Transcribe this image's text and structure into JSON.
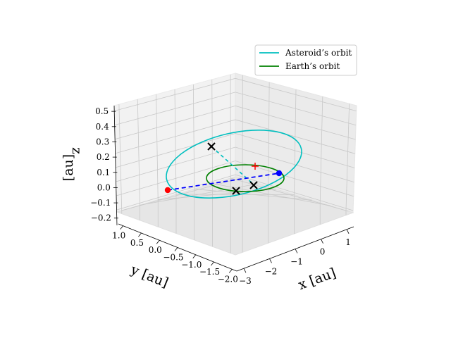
{
  "chart_data": {
    "type": "line",
    "projection": "3d",
    "xlabel": "x [au]",
    "ylabel": "y [au]",
    "zlabel": "z",
    "zlabel_unit": "[au]",
    "x_ticks": [
      "−3",
      "−2",
      "−1",
      "0",
      "1"
    ],
    "y_ticks": [
      "1.0",
      "0.5",
      "0.0",
      "−0.5",
      "−1.0",
      "−1.5",
      "−2.0"
    ],
    "z_ticks": [
      "0.5",
      "0.4",
      "0.3",
      "0.2",
      "0.1",
      "0.0",
      "−0.1",
      "−0.2"
    ],
    "grid": true,
    "legend_position": "top-right",
    "series": [
      {
        "name": "Asteroid’s orbit",
        "color": "#00bfbf",
        "shape": "ellipse",
        "semi_major_axis": 1.7,
        "eccentricity": 0.3,
        "inclination_deg": 10
      },
      {
        "name": "Earth’s orbit",
        "color": "#008000",
        "shape": "circle",
        "radius": 1.0
      }
    ],
    "markers": [
      {
        "label": "asteroid-position",
        "color": "#ff0000",
        "symbol": "dot"
      },
      {
        "label": "earth-position",
        "color": "#0000ff",
        "symbol": "dot"
      },
      {
        "label": "sun",
        "color": "#ff0000",
        "symbol": "plus"
      },
      {
        "label": "node-1",
        "color": "#000000",
        "symbol": "cross"
      },
      {
        "label": "node-2",
        "color": "#000000",
        "symbol": "cross"
      },
      {
        "label": "node-3",
        "color": "#000000",
        "symbol": "cross"
      }
    ],
    "lines": [
      {
        "label": "earth-asteroid-line",
        "color": "#0000ff",
        "style": "dashed"
      },
      {
        "label": "line-of-nodes",
        "color": "#00bfbf",
        "style": "dashed"
      }
    ]
  }
}
